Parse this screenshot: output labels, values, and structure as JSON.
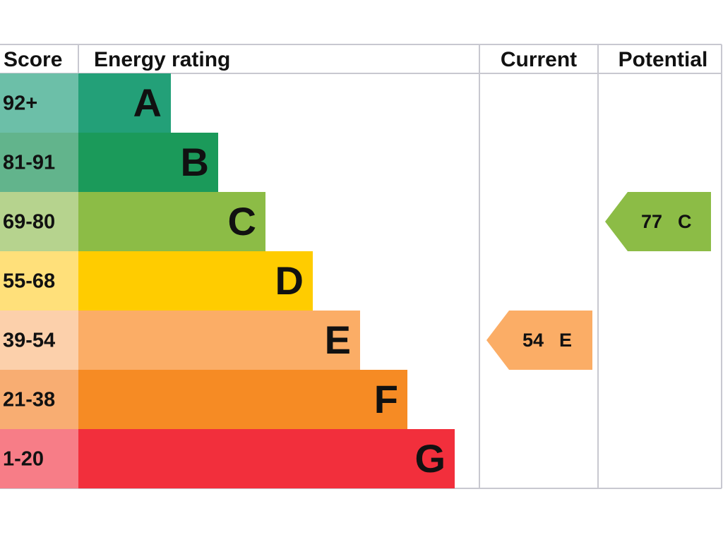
{
  "header": {
    "score": "Score",
    "rating": "Energy rating",
    "current": "Current",
    "potential": "Potential"
  },
  "bands": [
    {
      "range": "92+",
      "letter": "A",
      "color": "#23a078",
      "score_color": "#6cbfa8"
    },
    {
      "range": "81-91",
      "letter": "B",
      "color": "#1b9a5a",
      "score_color": "#62b48c"
    },
    {
      "range": "69-80",
      "letter": "C",
      "color": "#8cbc46",
      "score_color": "#b6d38e"
    },
    {
      "range": "55-68",
      "letter": "D",
      "color": "#ffcc00",
      "score_color": "#ffe07a"
    },
    {
      "range": "39-54",
      "letter": "E",
      "color": "#fbad66",
      "score_color": "#fcd0ab"
    },
    {
      "range": "21-38",
      "letter": "F",
      "color": "#f68b24",
      "score_color": "#f8ad72"
    },
    {
      "range": "1-20",
      "letter": "G",
      "color": "#f22f3c",
      "score_color": "#f77d87"
    }
  ],
  "current": {
    "value": 54,
    "letter": "E"
  },
  "potential": {
    "value": 77,
    "letter": "C"
  }
}
